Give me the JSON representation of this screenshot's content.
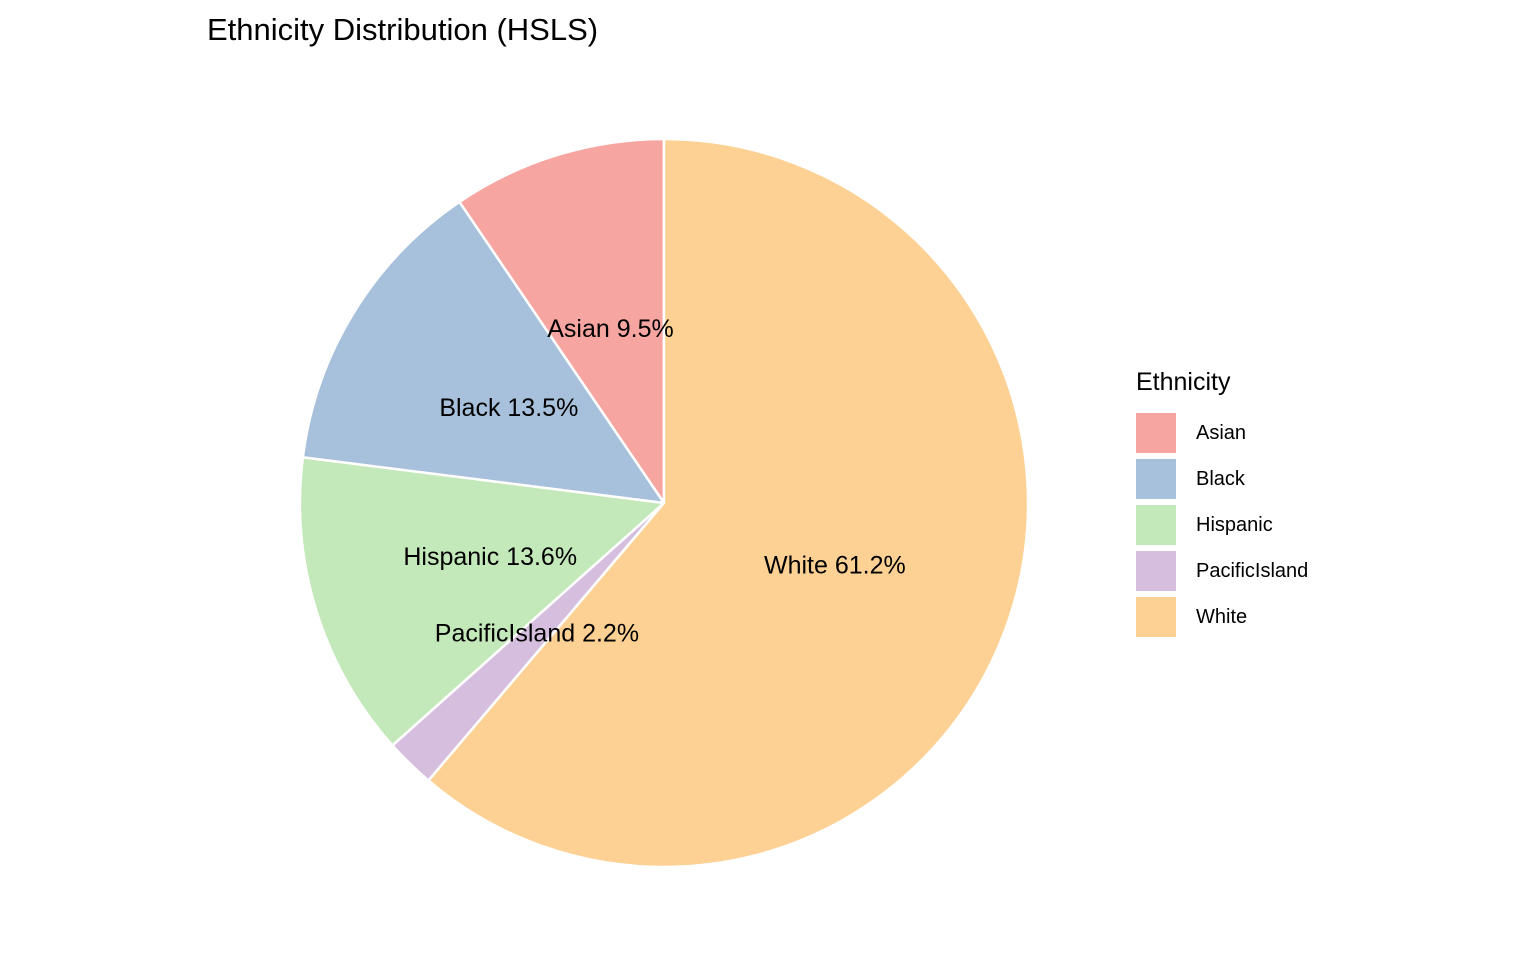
{
  "chart_data": {
    "type": "pie",
    "title": "Ethnicity Distribution (HSLS)",
    "legend_title": "Ethnicity",
    "legend_position": "right",
    "slices": [
      {
        "label": "Asian",
        "value": 9.5,
        "display": "Asian 9.5%",
        "color": "#F7A5A1"
      },
      {
        "label": "Black",
        "value": 13.5,
        "display": "Black 13.5%",
        "color": "#A7C0DB"
      },
      {
        "label": "Hispanic",
        "value": 13.6,
        "display": "Hispanic 13.6%",
        "color": "#C3E8B9"
      },
      {
        "label": "PacificIsland",
        "value": 2.2,
        "display": "PacificIsland 2.2%",
        "color": "#D6BFDE"
      },
      {
        "label": "White",
        "value": 61.2,
        "display": "White 61.2%",
        "color": "#FDD194"
      }
    ]
  }
}
